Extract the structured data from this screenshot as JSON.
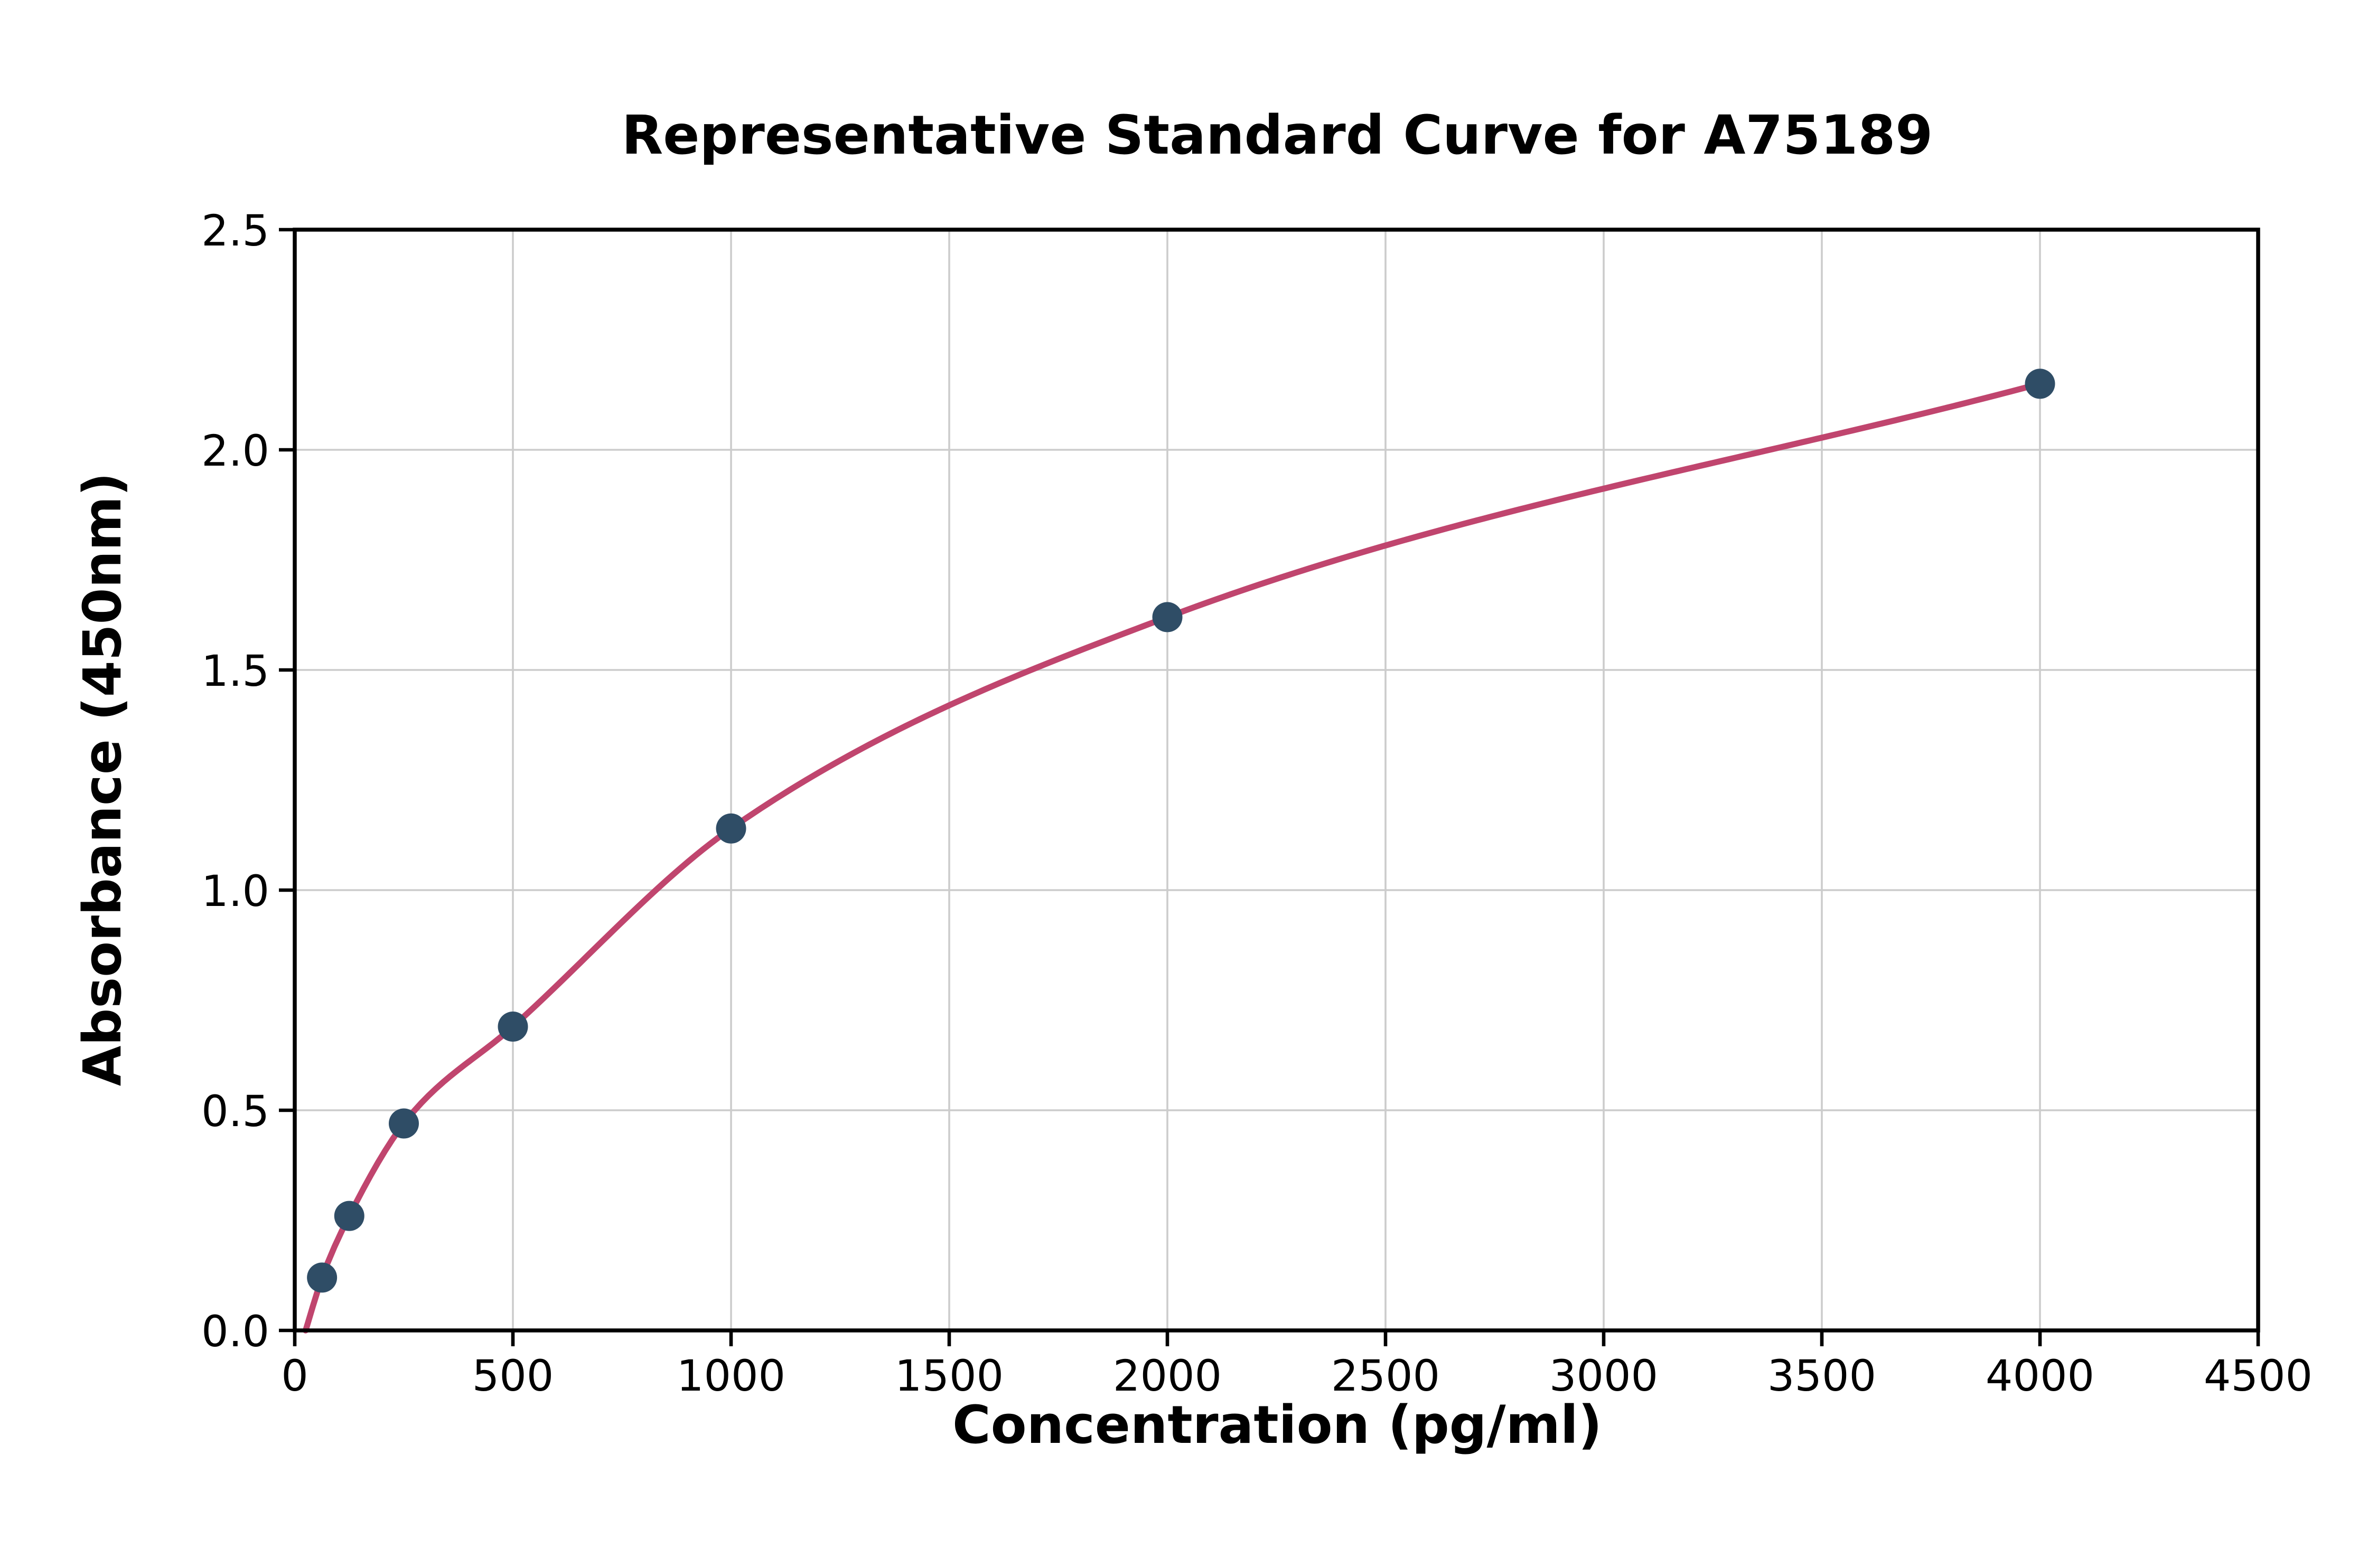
{
  "page": {
    "background": "#ffffff"
  },
  "chart_data": {
    "type": "scatter",
    "title": "Representative Standard Curve for A75189",
    "xlabel": "Concentration (pg/ml)",
    "ylabel": "Absorbance (450nm)",
    "xlim": [
      0,
      4500
    ],
    "ylim": [
      0,
      2.5
    ],
    "grid": true,
    "legend_position": "none",
    "x_ticks": [
      0,
      500,
      1000,
      1500,
      2000,
      2500,
      3000,
      3500,
      4000,
      4500
    ],
    "x_tick_labels": [
      "0",
      "500",
      "1000",
      "1500",
      "2000",
      "2500",
      "3000",
      "3500",
      "4000",
      "4500"
    ],
    "y_ticks": [
      0,
      0.5,
      1.0,
      1.5,
      2.0,
      2.5
    ],
    "y_tick_labels": [
      "0.0",
      "0.5",
      "1.0",
      "1.5",
      "2.0",
      "2.5"
    ],
    "points": [
      {
        "x": 62.5,
        "y": 0.12
      },
      {
        "x": 125,
        "y": 0.26
      },
      {
        "x": 250,
        "y": 0.47
      },
      {
        "x": 500,
        "y": 0.69
      },
      {
        "x": 1000,
        "y": 1.14
      },
      {
        "x": 2000,
        "y": 1.62
      },
      {
        "x": 4000,
        "y": 2.15
      }
    ],
    "curve_start": {
      "x": 25,
      "y": 0
    },
    "colors": {
      "curve": "#c0456e",
      "points": "#2f4d66",
      "grid": "#cccccc",
      "axes": "#000000",
      "background": "#ffffff"
    }
  }
}
